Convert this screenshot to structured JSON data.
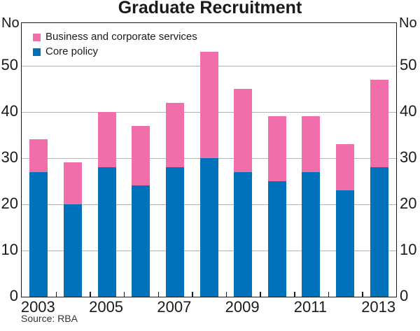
{
  "title": "Graduate Recruitment",
  "source_note": "Source: RBA",
  "axis_units": {
    "left": "No",
    "right": "No"
  },
  "legend": {
    "items": [
      {
        "label": "Business and corporate services",
        "color": "#F06EA9"
      },
      {
        "label": "Core policy",
        "color": "#0072BC"
      }
    ]
  },
  "chart_data": {
    "type": "bar",
    "stacked": true,
    "title": "Graduate Recruitment",
    "categories": [
      "2003",
      "2004",
      "2005",
      "2006",
      "2007",
      "2008",
      "2009",
      "2010",
      "2011",
      "2012",
      "2013"
    ],
    "series": [
      {
        "name": "Core policy",
        "color": "#0072BC",
        "values": [
          27,
          20,
          28,
          24,
          28,
          30,
          27,
          25,
          27,
          23,
          28
        ]
      },
      {
        "name": "Business and corporate services",
        "color": "#F06EA9",
        "values": [
          7,
          9,
          12,
          13,
          14,
          23,
          18,
          14,
          12,
          10,
          19
        ]
      }
    ],
    "stack_totals": [
      34,
      29,
      40,
      37,
      42,
      53,
      45,
      39,
      39,
      33,
      47
    ],
    "ylabel": "No",
    "ylim": [
      0,
      59.2
    ],
    "yticks": [
      0,
      10,
      20,
      30,
      40,
      50
    ],
    "xticks": [
      {
        "label": "2003",
        "index": 0
      },
      {
        "label": "2005",
        "index": 2
      },
      {
        "label": "2007",
        "index": 4
      },
      {
        "label": "2009",
        "index": 6
      },
      {
        "label": "2011",
        "index": 8
      },
      {
        "label": "2013",
        "index": 10
      }
    ],
    "grid": true,
    "grid_color": "#b3b3b3",
    "legend_position": "top-left",
    "source": "Source: RBA"
  }
}
